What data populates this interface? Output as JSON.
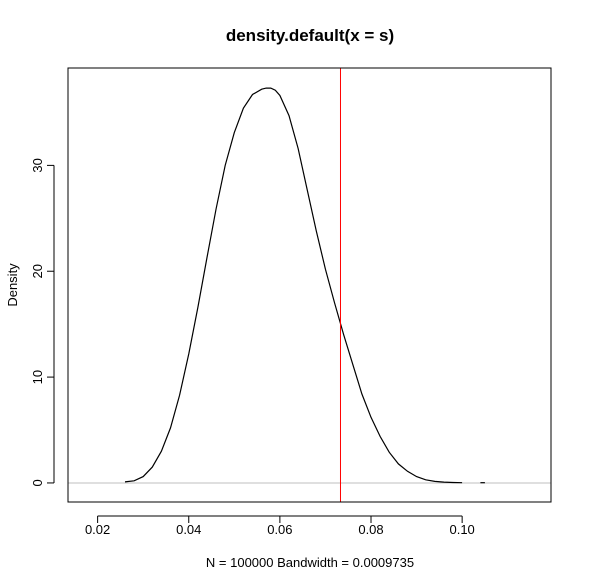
{
  "chart_data": {
    "type": "line",
    "title": "density.default(x = s)",
    "xlabel": "N = 100000   Bandwidth = 0.0009735",
    "ylabel": "Density",
    "xlim": [
      0.0135,
      0.1195
    ],
    "ylim": [
      -1.8,
      39.2
    ],
    "x_ticks": [
      "0.02",
      "0.04",
      "0.06",
      "0.08",
      "0.10"
    ],
    "x_tick_values": [
      0.02,
      0.04,
      0.06,
      0.08,
      0.1
    ],
    "y_ticks": [
      "0",
      "10",
      "20",
      "30"
    ],
    "y_tick_values": [
      0,
      10,
      20,
      30
    ],
    "grid": false,
    "baseline": {
      "y": 0,
      "color": "#bfbfbf"
    },
    "vline": {
      "x": 0.0733,
      "color": "#ff0000"
    },
    "series": [
      {
        "color": "#000000",
        "x": [
          0.026,
          0.028,
          0.03,
          0.032,
          0.034,
          0.036,
          0.038,
          0.04,
          0.042,
          0.044,
          0.046,
          0.048,
          0.05,
          0.052,
          0.054,
          0.056,
          0.057,
          0.058,
          0.059,
          0.06,
          0.062,
          0.064,
          0.066,
          0.068,
          0.07,
          0.072,
          0.074,
          0.076,
          0.078,
          0.08,
          0.082,
          0.084,
          0.086,
          0.088,
          0.09,
          0.092,
          0.094,
          0.096,
          0.098,
          0.1
        ],
        "y": [
          0.1,
          0.2,
          0.6,
          1.5,
          3.0,
          5.2,
          8.3,
          12.2,
          16.6,
          21.3,
          25.9,
          30.0,
          33.1,
          35.4,
          36.7,
          37.2,
          37.3,
          37.3,
          37.1,
          36.6,
          34.7,
          31.6,
          27.7,
          23.8,
          20.2,
          17.0,
          14.0,
          11.2,
          8.4,
          6.2,
          4.4,
          2.9,
          1.8,
          1.1,
          0.6,
          0.3,
          0.15,
          0.08,
          0.04,
          0.02
        ]
      },
      {
        "color": "#000000",
        "x": [
          0.104,
          0.105
        ],
        "y": [
          0.02,
          0.02
        ]
      }
    ]
  }
}
